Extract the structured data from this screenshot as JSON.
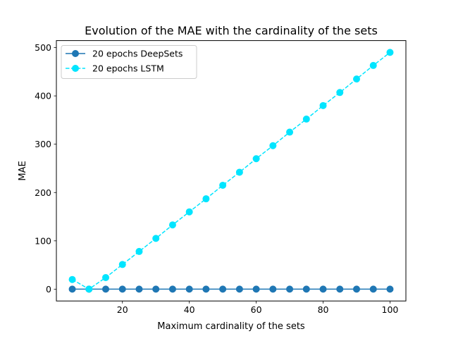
{
  "chart_data": {
    "type": "line",
    "title": "Evolution of the MAE with the cardinality of the sets",
    "xlabel": "Maximum cardinality of the sets",
    "ylabel": "MAE",
    "x": [
      5,
      10,
      15,
      20,
      25,
      30,
      35,
      40,
      45,
      50,
      55,
      60,
      65,
      70,
      75,
      80,
      85,
      90,
      95,
      100
    ],
    "xlim": [
      0.25,
      104.75
    ],
    "ylim": [
      -24.5,
      514.5
    ],
    "xticks": [
      20,
      40,
      60,
      80,
      100
    ],
    "yticks": [
      0,
      100,
      200,
      300,
      400,
      500
    ],
    "grid": false,
    "legend_position": "top-left",
    "series": [
      {
        "name": "20 epochs DeepSets",
        "color": "#1f77b4",
        "linestyle": "solid",
        "marker": "circle",
        "values": [
          0,
          0,
          0,
          0,
          0,
          0,
          0,
          0,
          0,
          0,
          0,
          0,
          0,
          0,
          0,
          0,
          0,
          0,
          0,
          0
        ]
      },
      {
        "name": "20 epochs LSTM",
        "color": "#00e5ff",
        "linestyle": "dashed",
        "marker": "circle",
        "values": [
          20,
          0,
          24,
          51,
          78,
          105,
          133,
          160,
          187,
          215,
          242,
          270,
          297,
          325,
          352,
          380,
          407,
          435,
          463,
          490
        ]
      }
    ]
  }
}
